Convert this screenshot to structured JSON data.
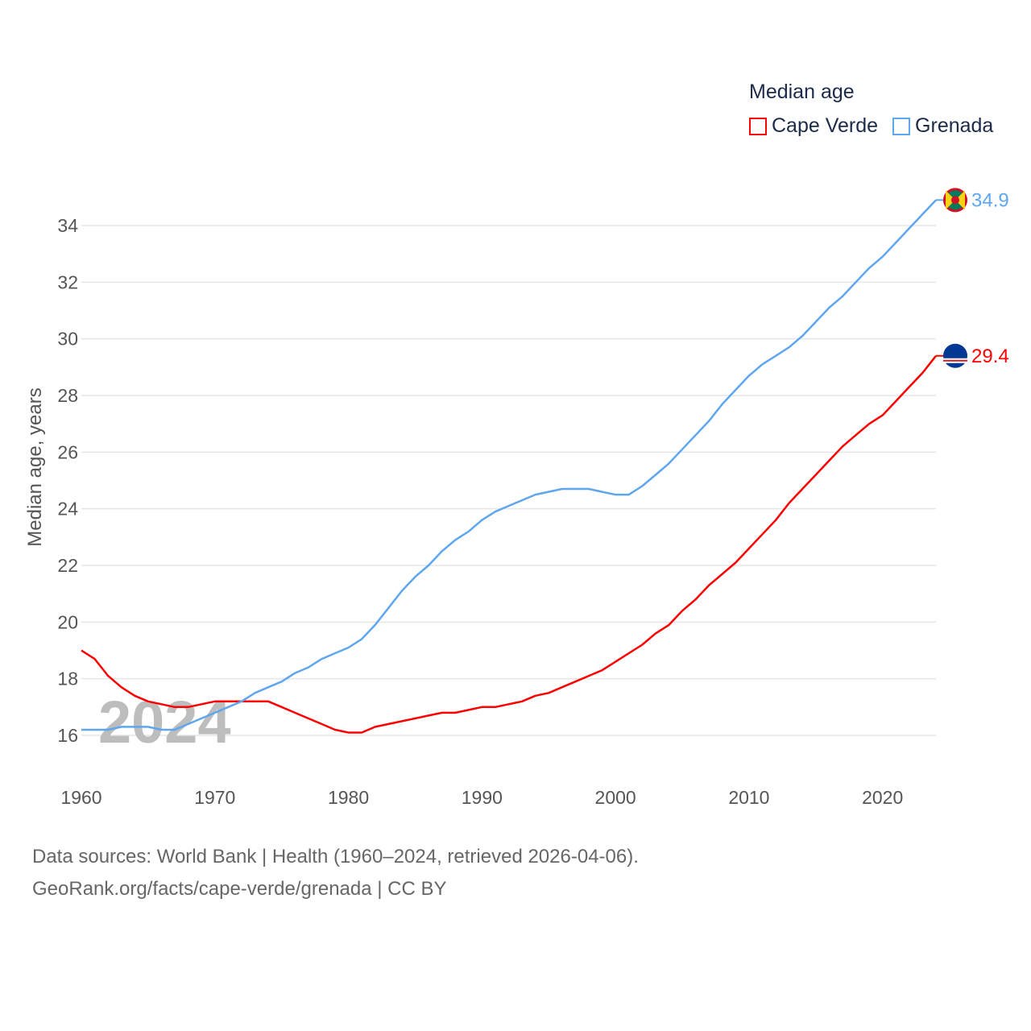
{
  "chart_data": {
    "type": "line",
    "title": "",
    "xlabel": "",
    "ylabel": "Median age, years",
    "xlim": [
      1960,
      2024
    ],
    "ylim": [
      15,
      35
    ],
    "x_ticks": [
      "1960",
      "1970",
      "1980",
      "1990",
      "2000",
      "2010",
      "2020"
    ],
    "y_ticks": [
      "16",
      "18",
      "20",
      "22",
      "24",
      "26",
      "28",
      "30",
      "32",
      "34"
    ],
    "grid": true,
    "watermark": "2024",
    "legend": {
      "title": "Median age",
      "placement": "top-right"
    },
    "x": [
      1960,
      1961,
      1962,
      1963,
      1964,
      1965,
      1966,
      1967,
      1968,
      1969,
      1970,
      1971,
      1972,
      1973,
      1974,
      1975,
      1976,
      1977,
      1978,
      1979,
      1980,
      1981,
      1982,
      1983,
      1984,
      1985,
      1986,
      1987,
      1988,
      1989,
      1990,
      1991,
      1992,
      1993,
      1994,
      1995,
      1996,
      1997,
      1998,
      1999,
      2000,
      2001,
      2002,
      2003,
      2004,
      2005,
      2006,
      2007,
      2008,
      2009,
      2010,
      2011,
      2012,
      2013,
      2014,
      2015,
      2016,
      2017,
      2018,
      2019,
      2020,
      2021,
      2022,
      2023,
      2024
    ],
    "series": [
      {
        "name": "Cape Verde",
        "color": "#ff0000",
        "end_label": "29.4",
        "flag": "cape-verde-flag",
        "values": [
          19.0,
          18.7,
          18.1,
          17.7,
          17.4,
          17.2,
          17.1,
          17.0,
          17.0,
          17.1,
          17.2,
          17.2,
          17.2,
          17.2,
          17.2,
          17.0,
          16.8,
          16.6,
          16.4,
          16.2,
          16.1,
          16.1,
          16.3,
          16.4,
          16.5,
          16.6,
          16.7,
          16.8,
          16.8,
          16.9,
          17.0,
          17.0,
          17.1,
          17.2,
          17.4,
          17.5,
          17.7,
          17.9,
          18.1,
          18.3,
          18.6,
          18.9,
          19.2,
          19.6,
          19.9,
          20.4,
          20.8,
          21.3,
          21.7,
          22.1,
          22.6,
          23.1,
          23.6,
          24.2,
          24.7,
          25.2,
          25.7,
          26.2,
          26.6,
          27.0,
          27.3,
          27.8,
          28.3,
          28.8,
          29.4
        ]
      },
      {
        "name": "Grenada",
        "color": "#5ea6ee",
        "end_label": "34.9",
        "flag": "grenada-flag",
        "values": [
          16.2,
          16.2,
          16.2,
          16.3,
          16.3,
          16.3,
          16.2,
          16.2,
          16.4,
          16.6,
          16.8,
          17.0,
          17.2,
          17.5,
          17.7,
          17.9,
          18.2,
          18.4,
          18.7,
          18.9,
          19.1,
          19.4,
          19.9,
          20.5,
          21.1,
          21.6,
          22.0,
          22.5,
          22.9,
          23.2,
          23.6,
          23.9,
          24.1,
          24.3,
          24.5,
          24.6,
          24.7,
          24.7,
          24.7,
          24.6,
          24.5,
          24.5,
          24.8,
          25.2,
          25.6,
          26.1,
          26.6,
          27.1,
          27.7,
          28.2,
          28.7,
          29.1,
          29.4,
          29.7,
          30.1,
          30.6,
          31.1,
          31.5,
          32.0,
          32.5,
          32.9,
          33.4,
          33.9,
          34.4,
          34.9
        ]
      }
    ]
  },
  "footer": {
    "line1": "Data sources: World Bank | Health (1960–2024, retrieved 2026-04-06).",
    "line2": "GeoRank.org/facts/cape-verde/grenada | CC BY"
  }
}
